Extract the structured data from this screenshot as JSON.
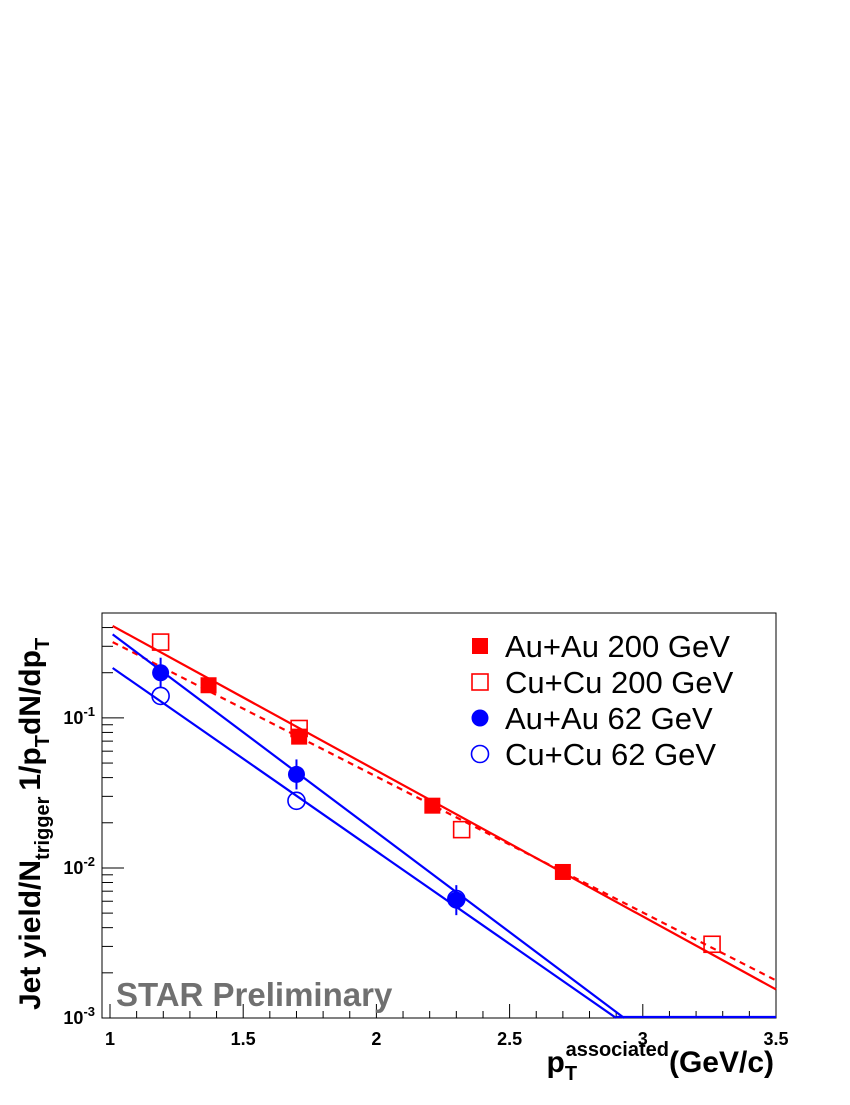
{
  "chart_data": {
    "type": "scatter",
    "annotation": "STAR Preliminary",
    "xlabel": {
      "main": "p",
      "sub": "T",
      "sup": "associated",
      "unit": "(GeV/c)"
    },
    "ylabel": {
      "part1": "Jet yield/N",
      "sub1": "trigger",
      "part2": "1/p",
      "sub2": "T",
      "part3": "dN/dp",
      "sub3": "T"
    },
    "xlim": [
      0.97,
      3.5
    ],
    "ylim": [
      0.001,
      0.5
    ],
    "y_scale": "log",
    "x_ticks": [
      "1",
      "1.5",
      "2",
      "2.5",
      "3",
      "3.5"
    ],
    "x_tick_values": [
      1,
      1.5,
      2,
      2.5,
      3,
      3.5
    ],
    "y_ticks": [
      {
        "base": "10",
        "exp": "-3",
        "value": 0.001
      },
      {
        "base": "10",
        "exp": "-2",
        "value": 0.01
      },
      {
        "base": "10",
        "exp": "-1",
        "value": 0.1
      }
    ],
    "grid": false,
    "legend_position": "top-right",
    "series": [
      {
        "name": "Au+Au 200 GeV",
        "color": "#ff0000",
        "marker": "square-filled",
        "points": [
          [
            1.37,
            0.165
          ],
          [
            1.71,
            0.075
          ],
          [
            2.21,
            0.026
          ],
          [
            2.7,
            0.0094
          ]
        ],
        "fit": {
          "style": "solid",
          "x": [
            1.01,
            3.5
          ],
          "y": [
            0.41,
            0.00155
          ]
        }
      },
      {
        "name": "Cu+Cu 200 GeV",
        "color": "#ff0000",
        "marker": "square-open",
        "points": [
          [
            1.19,
            0.32
          ],
          [
            1.71,
            0.085
          ],
          [
            2.32,
            0.018
          ],
          [
            3.26,
            0.0031
          ]
        ],
        "fit": {
          "style": "dashed",
          "x": [
            1.01,
            3.5
          ],
          "y": [
            0.32,
            0.00178
          ]
        }
      },
      {
        "name": "Au+Au 62 GeV",
        "color": "#0000ff",
        "marker": "circle-filled",
        "points": [
          [
            1.19,
            0.2
          ],
          [
            1.7,
            0.042
          ],
          [
            2.3,
            0.0061
          ]
        ],
        "fit": {
          "style": "solid",
          "x": [
            1.01,
            2.93
          ],
          "y": [
            0.36,
            0.001
          ]
        }
      },
      {
        "name": "Cu+Cu 62 GeV",
        "color": "#0000ff",
        "marker": "circle-open",
        "points": [
          [
            1.19,
            0.14
          ],
          [
            1.7,
            0.028
          ],
          [
            2.3,
            0.0062
          ]
        ],
        "fit": {
          "style": "solid",
          "x": [
            1.01,
            2.9
          ],
          "y": [
            0.215,
            0.001
          ]
        }
      }
    ]
  }
}
